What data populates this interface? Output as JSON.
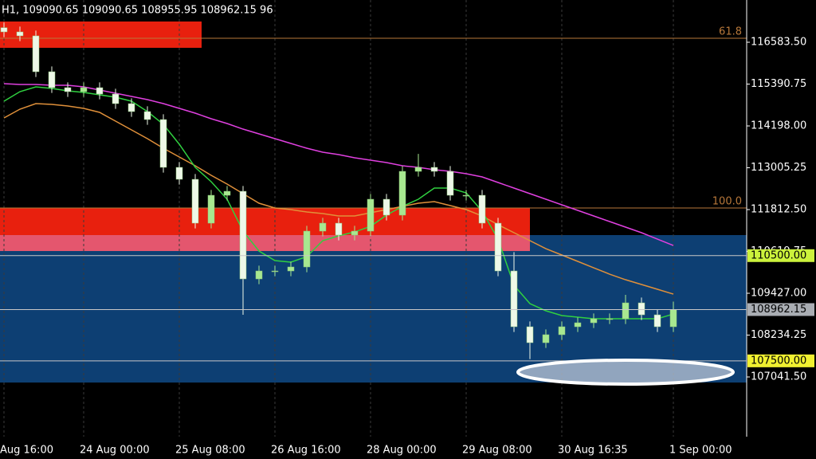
{
  "chart_data": {
    "type": "candlestick",
    "title": "H1, 109090.65 109090.65 108955.95 108962.15 96",
    "categories": [
      "Aug 16:00",
      null,
      null,
      null,
      null,
      "24 Aug 00:00",
      null,
      null,
      null,
      null,
      null,
      "25 Aug 08:00",
      null,
      null,
      null,
      null,
      null,
      "26 Aug 16:00",
      null,
      null,
      null,
      null,
      null,
      "28 Aug 00:00",
      null,
      null,
      null,
      null,
      null,
      "29 Aug 08:00",
      null,
      null,
      null,
      null,
      null,
      "30 Aug 16:35",
      null,
      null,
      null,
      null,
      null,
      null,
      "1 Sep 00:00"
    ],
    "open": [
      117000,
      116879,
      116766,
      115743,
      115289,
      115175,
      115289,
      115107,
      114834,
      114607,
      114380,
      113017,
      112676,
      111426,
      112221,
      112335,
      109836,
      110063,
      110063,
      110177,
      111199,
      111426,
      111086,
      111199,
      112108,
      111654,
      112903,
      113017,
      112903,
      112221,
      112221,
      111426,
      110063,
      108473,
      108018,
      108246,
      108473,
      108586,
      108700,
      108700,
      109154,
      108813,
      108473
    ],
    "high": [
      117150,
      117029,
      116916,
      115893,
      115439,
      115439,
      115439,
      115257,
      114984,
      114757,
      114530,
      113167,
      112826,
      112371,
      112485,
      112485,
      110213,
      110213,
      110327,
      111349,
      111576,
      111576,
      111349,
      112258,
      112258,
      113053,
      113400,
      113167,
      113053,
      112371,
      112371,
      111576,
      110600,
      108623,
      108396,
      108623,
      108736,
      108850,
      108850,
      109381,
      109304,
      108963,
      109190
    ],
    "low": [
      116729,
      116616,
      115593,
      115139,
      115025,
      115025,
      114957,
      114684,
      114457,
      114230,
      112867,
      112526,
      111276,
      111276,
      112071,
      108813,
      109686,
      109913,
      109913,
      110027,
      111049,
      110936,
      110936,
      111049,
      111504,
      111504,
      112753,
      112753,
      112071,
      112071,
      111276,
      109913,
      108323,
      107550,
      107868,
      108096,
      108323,
      108436,
      108550,
      108550,
      108663,
      108323,
      108323
    ],
    "close": [
      116879,
      116766,
      115743,
      115289,
      115175,
      115289,
      115107,
      114834,
      114607,
      114380,
      113017,
      112676,
      111426,
      112221,
      112335,
      109836,
      110063,
      110063,
      110177,
      111199,
      111426,
      111086,
      111199,
      112108,
      111654,
      112903,
      113017,
      112903,
      112221,
      112221,
      111426,
      110063,
      108473,
      108018,
      108246,
      108473,
      108586,
      108700,
      108700,
      109154,
      108813,
      108473,
      108962
    ],
    "up_color": "#a8e890",
    "down_color": "#eef8e8",
    "series": [
      {
        "color": "#e040e0",
        "values": [
          115402,
          115380,
          115380,
          115357,
          115357,
          115312,
          115221,
          115130,
          115039,
          114948,
          114834,
          114698,
          114562,
          114403,
          114266,
          114107,
          113971,
          113835,
          113698,
          113562,
          113448,
          113380,
          113289,
          113221,
          113153,
          113062,
          113017,
          112949,
          112903,
          112835,
          112744,
          112585,
          112426,
          112267,
          112108,
          111949,
          111790,
          111631,
          111472,
          111313,
          111154,
          110972,
          110790
        ]
      },
      {
        "color": "#e0903a",
        "values": [
          114425,
          114675,
          114834,
          114812,
          114766,
          114698,
          114585,
          114335,
          114085,
          113835,
          113562,
          113312,
          113062,
          112790,
          112540,
          112267,
          111994,
          111858,
          111813,
          111744,
          111699,
          111631,
          111631,
          111721,
          111813,
          111904,
          111994,
          112040,
          111926,
          111813,
          111631,
          111381,
          111154,
          110927,
          110699,
          110518,
          110336,
          110154,
          109972,
          109813,
          109677,
          109541,
          109404
        ]
      },
      {
        "color": "#30d040",
        "values": [
          114903,
          115175,
          115312,
          115266,
          115198,
          115152,
          115084,
          115016,
          114903,
          114607,
          114244,
          113676,
          113017,
          112608,
          112108,
          111199,
          110631,
          110359,
          110313,
          110472,
          110927,
          111063,
          111176,
          111335,
          111654,
          111904,
          112108,
          112426,
          112426,
          112290,
          111767,
          110972,
          109654,
          109132,
          108927,
          108791,
          108746,
          108700,
          108700,
          108700,
          108700,
          108700,
          108836
        ]
      }
    ],
    "ylim": [
      105338,
      117788
    ],
    "yticks": [
      {
        "value": 116583.5,
        "label": "116583.50"
      },
      {
        "value": 115390.75,
        "label": "115390.75"
      },
      {
        "value": 114198,
        "label": "114198.00"
      },
      {
        "value": 113005.25,
        "label": "113005.25"
      },
      {
        "value": 111812.5,
        "label": "111812.50"
      },
      {
        "value": 110619.75,
        "label": "110619.75"
      },
      {
        "value": 109427,
        "label": "109427.00"
      },
      {
        "value": 108234.25,
        "label": "108234.25"
      },
      {
        "value": 107041.5,
        "label": "107041.50"
      }
    ],
    "zones": [
      {
        "from": 116425,
        "to": 117175,
        "start": -0.25,
        "end": 12.4,
        "color": "#e8200e"
      },
      {
        "from": 106882,
        "to": 111086,
        "start": -0.25,
        "end": 46.6,
        "color": "#0d3f73"
      },
      {
        "from": 111086,
        "to": 111858,
        "start": -0.25,
        "end": 33,
        "color": "#e8200e"
      },
      {
        "from": 110631,
        "to": 111086,
        "start": -0.25,
        "end": 33,
        "color": "#e4566e"
      }
    ],
    "levels": [
      {
        "price": 116697,
        "text": "61.8",
        "color": "#b8783a"
      },
      {
        "price": 111858,
        "text": "100.0",
        "color": "#b8783a"
      }
    ],
    "price_lines": [
      {
        "value": 110500,
        "label": "110500.00",
        "color": "#ccf23c"
      },
      {
        "value": 108962.15,
        "label": "108962.15",
        "color": "#a9adb3"
      },
      {
        "value": 107500,
        "label": "107500.00",
        "color": "#f0f030"
      }
    ]
  }
}
